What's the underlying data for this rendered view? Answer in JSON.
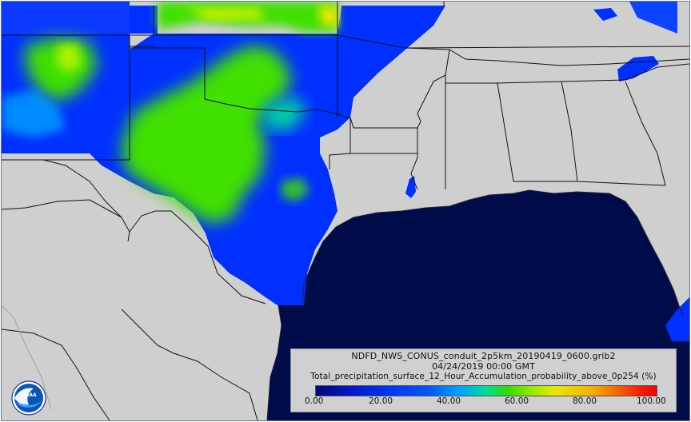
{
  "legend": {
    "filename": "NDFD_NWS_CONUS_conduit_2p5km_20190419_0600.grib2",
    "datetime": "04/24/2019 00:00 GMT",
    "variable": "Total_precipitation_surface_12_Hour_Accumulation_probability_above_0p254 (%)",
    "ticks": [
      "0.00",
      "20.00",
      "40.00",
      "60.00",
      "80.00",
      "100.00"
    ],
    "range": [
      0,
      100
    ],
    "colors": [
      "#050577",
      "#0038ff",
      "#00a8ff",
      "#30e400",
      "#f0f000",
      "#ff7000",
      "#ff0000"
    ]
  },
  "map": {
    "land_color": "#cfcfcf",
    "ocean_color": "#000c4a",
    "border_color": "#111111"
  },
  "logo": {
    "text": "NOAA",
    "icon": "noaa-logo-icon"
  }
}
